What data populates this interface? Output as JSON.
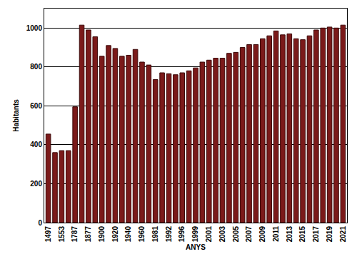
{
  "chart_data": {
    "type": "bar",
    "x_label": "ANYS",
    "y_label": "Habitants",
    "categories": [
      "1497",
      null,
      "1553",
      null,
      "1787",
      null,
      "1877",
      null,
      "1900",
      null,
      "1920",
      null,
      "1940",
      null,
      "1960",
      null,
      "1981",
      null,
      "1992",
      null,
      "1996",
      null,
      "1999",
      null,
      "2001",
      null,
      "2003",
      null,
      "2005",
      null,
      "2007",
      null,
      "2009",
      null,
      "2011",
      null,
      "2013",
      null,
      "2015",
      null,
      "2017",
      null,
      "2019",
      null,
      "2021"
    ],
    "values": [
      455,
      360,
      370,
      370,
      595,
      1015,
      990,
      955,
      855,
      910,
      895,
      855,
      860,
      890,
      825,
      810,
      735,
      770,
      765,
      760,
      770,
      780,
      795,
      825,
      835,
      845,
      845,
      870,
      875,
      900,
      915,
      915,
      945,
      960,
      985,
      965,
      970,
      945,
      940,
      960,
      990,
      1000,
      1005,
      1000,
      1015
    ],
    "color": "#7b1a1a",
    "ylim": [
      0,
      1100
    ],
    "yticks": [
      0,
      200,
      400,
      600,
      800,
      1000
    ],
    "grid": true
  }
}
